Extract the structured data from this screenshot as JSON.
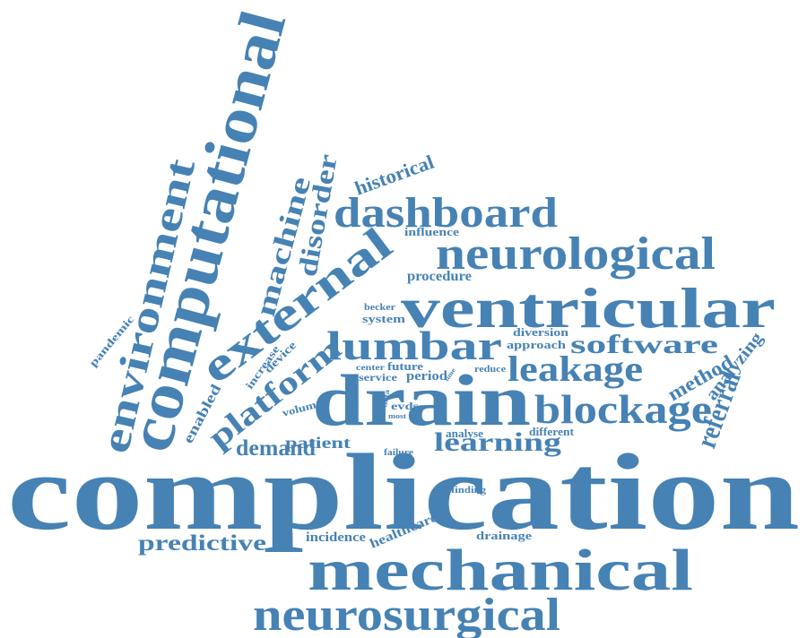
{
  "color": "#4682b4",
  "words": [
    {
      "key": "complication",
      "text": "complication"
    },
    {
      "key": "mechanical",
      "text": "mechanical"
    },
    {
      "key": "neurosurgical",
      "text": "neurosurgical"
    },
    {
      "key": "drain",
      "text": "drain"
    },
    {
      "key": "ventricular",
      "text": "ventricular"
    },
    {
      "key": "neurological",
      "text": "neurological"
    },
    {
      "key": "dashboard",
      "text": "dashboard"
    },
    {
      "key": "lumbar",
      "text": "lumbar"
    },
    {
      "key": "leakage",
      "text": "leakage"
    },
    {
      "key": "software",
      "text": "software"
    },
    {
      "key": "blockage",
      "text": "blockage"
    },
    {
      "key": "learning",
      "text": "learning"
    },
    {
      "key": "predictive",
      "text": "predictive"
    },
    {
      "key": "computational",
      "text": "computational"
    },
    {
      "key": "environment",
      "text": "environment"
    },
    {
      "key": "external",
      "text": "external"
    },
    {
      "key": "machine",
      "text": "machine"
    },
    {
      "key": "disorder",
      "text": "disorder"
    },
    {
      "key": "platform",
      "text": "platform"
    },
    {
      "key": "referral",
      "text": "referral"
    },
    {
      "key": "method",
      "text": "method"
    },
    {
      "key": "analyzing",
      "text": "analyzing"
    },
    {
      "key": "demand",
      "text": "demand"
    },
    {
      "key": "patient",
      "text": "patient"
    },
    {
      "key": "historical",
      "text": "historical"
    },
    {
      "key": "influence",
      "text": "influence"
    },
    {
      "key": "procedure",
      "text": "procedure"
    },
    {
      "key": "becker",
      "text": "becker"
    },
    {
      "key": "system",
      "text": "system"
    },
    {
      "key": "diversion",
      "text": "diversion"
    },
    {
      "key": "approach",
      "text": "approach"
    },
    {
      "key": "center",
      "text": "center"
    },
    {
      "key": "future",
      "text": "future"
    },
    {
      "key": "service",
      "text": "service"
    },
    {
      "key": "period",
      "text": "period"
    },
    {
      "key": "reduce",
      "text": "reduce"
    },
    {
      "key": "time",
      "text": "time"
    },
    {
      "key": "data",
      "text": "data"
    },
    {
      "key": "evds",
      "text": "evds"
    },
    {
      "key": "most",
      "text": "most"
    },
    {
      "key": "analyse",
      "text": "analyse"
    },
    {
      "key": "different",
      "text": "different"
    },
    {
      "key": "failure",
      "text": "failure"
    },
    {
      "key": "finding",
      "text": "finding"
    },
    {
      "key": "incidence",
      "text": "incidence"
    },
    {
      "key": "healthcare",
      "text": "healthcare"
    },
    {
      "key": "drainage",
      "text": "drainage"
    },
    {
      "key": "pandemic",
      "text": "pandemic"
    },
    {
      "key": "increase",
      "text": "increase"
    },
    {
      "key": "device",
      "text": "device"
    },
    {
      "key": "enabled",
      "text": "enabled"
    },
    {
      "key": "volume",
      "text": "volume"
    }
  ]
}
